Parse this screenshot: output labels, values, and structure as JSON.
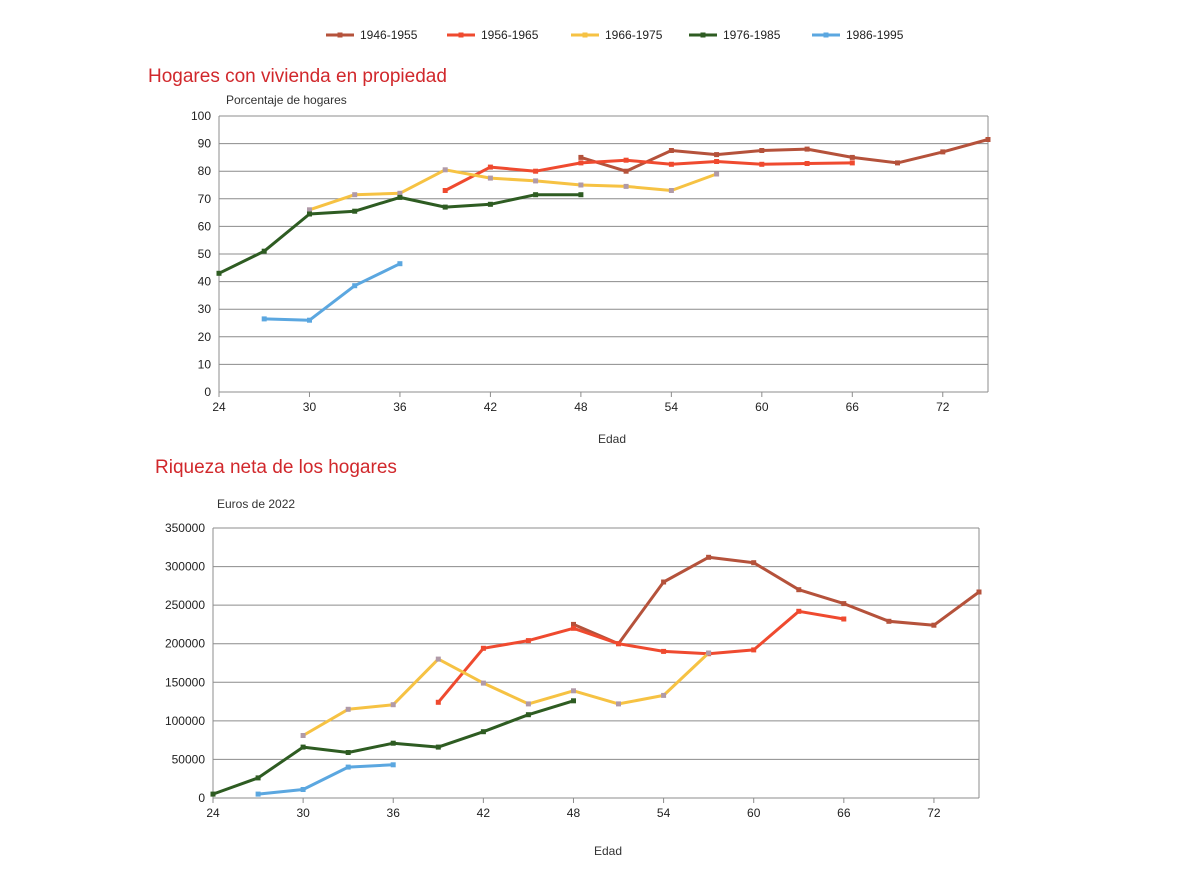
{
  "legend": [
    {
      "name": "1946-1955",
      "color": "#b5523b"
    },
    {
      "name": "1956-1965",
      "color": "#ef4a2f"
    },
    {
      "name": "1966-1975",
      "color": "#f6c243"
    },
    {
      "name": "1976-1985",
      "color": "#2e5c22"
    },
    {
      "name": "1986-1995",
      "color": "#5ba7e0"
    }
  ],
  "marker_color": "#b09aa8",
  "chart_data": [
    {
      "type": "line",
      "title": "Hogares con vivienda en propiedad",
      "ylabel": "Porcentaje de hogares",
      "xlabel": "Edad",
      "xlim": [
        24,
        75
      ],
      "ylim": [
        0,
        100
      ],
      "xticks": [
        24,
        30,
        36,
        42,
        48,
        54,
        60,
        66,
        72
      ],
      "yticks": [
        0,
        10,
        20,
        30,
        40,
        50,
        60,
        70,
        80,
        90,
        100
      ],
      "series": [
        {
          "name": "1946-1955",
          "x": [
            48,
            51,
            54,
            57,
            60,
            63,
            66,
            69,
            72,
            75
          ],
          "y": [
            85,
            80,
            87.5,
            86,
            87.5,
            88,
            85,
            83,
            87,
            91.5
          ]
        },
        {
          "name": "1956-1965",
          "x": [
            39,
            42,
            45,
            48,
            51,
            54,
            57,
            60,
            63,
            66
          ],
          "y": [
            73,
            81.5,
            80,
            83,
            84,
            82.5,
            83.5,
            82.5,
            82.8,
            83
          ]
        },
        {
          "name": "1966-1975",
          "x": [
            30,
            33,
            36,
            39,
            42,
            45,
            48,
            51,
            54,
            57
          ],
          "y": [
            66,
            71.5,
            72,
            80.5,
            77.5,
            76.5,
            75,
            74.5,
            73,
            79
          ]
        },
        {
          "name": "1976-1985",
          "x": [
            24,
            27,
            30,
            33,
            36,
            39,
            42,
            45,
            48
          ],
          "y": [
            43,
            51,
            64.5,
            65.5,
            70.5,
            67,
            68,
            71.5,
            71.5
          ]
        },
        {
          "name": "1986-1995",
          "x": [
            27,
            30,
            33,
            36
          ],
          "y": [
            26.5,
            26,
            38.5,
            46.5
          ]
        }
      ]
    },
    {
      "type": "line",
      "title": "Riqueza neta de los hogares",
      "ylabel": "Euros de 2022",
      "xlabel": "Edad",
      "xlim": [
        24,
        75
      ],
      "ylim": [
        0,
        350000
      ],
      "xticks": [
        24,
        30,
        36,
        42,
        48,
        54,
        60,
        66,
        72
      ],
      "yticks": [
        0,
        50000,
        100000,
        150000,
        200000,
        250000,
        300000,
        350000
      ],
      "series": [
        {
          "name": "1946-1955",
          "x": [
            48,
            51,
            54,
            57,
            60,
            63,
            66,
            69,
            72,
            75
          ],
          "y": [
            225000,
            200000,
            280000,
            312000,
            305000,
            270000,
            252000,
            229000,
            224000,
            267000
          ]
        },
        {
          "name": "1956-1965",
          "x": [
            39,
            42,
            45,
            48,
            51,
            54,
            57,
            60,
            63,
            66
          ],
          "y": [
            124000,
            194000,
            204000,
            220000,
            200000,
            190000,
            187000,
            192000,
            242000,
            232000
          ]
        },
        {
          "name": "1966-1975",
          "x": [
            30,
            33,
            36,
            39,
            42,
            45,
            48,
            51,
            54,
            57
          ],
          "y": [
            81000,
            115000,
            121000,
            180000,
            149000,
            122000,
            139000,
            122000,
            133000,
            188000
          ]
        },
        {
          "name": "1976-1985",
          "x": [
            24,
            27,
            30,
            33,
            36,
            39,
            42,
            45,
            48
          ],
          "y": [
            5000,
            26000,
            66000,
            59000,
            71000,
            66000,
            86000,
            108000,
            126000
          ]
        },
        {
          "name": "1986-1995",
          "x": [
            27,
            30,
            33,
            36
          ],
          "y": [
            5000,
            11000,
            40000,
            43000
          ]
        }
      ]
    }
  ]
}
